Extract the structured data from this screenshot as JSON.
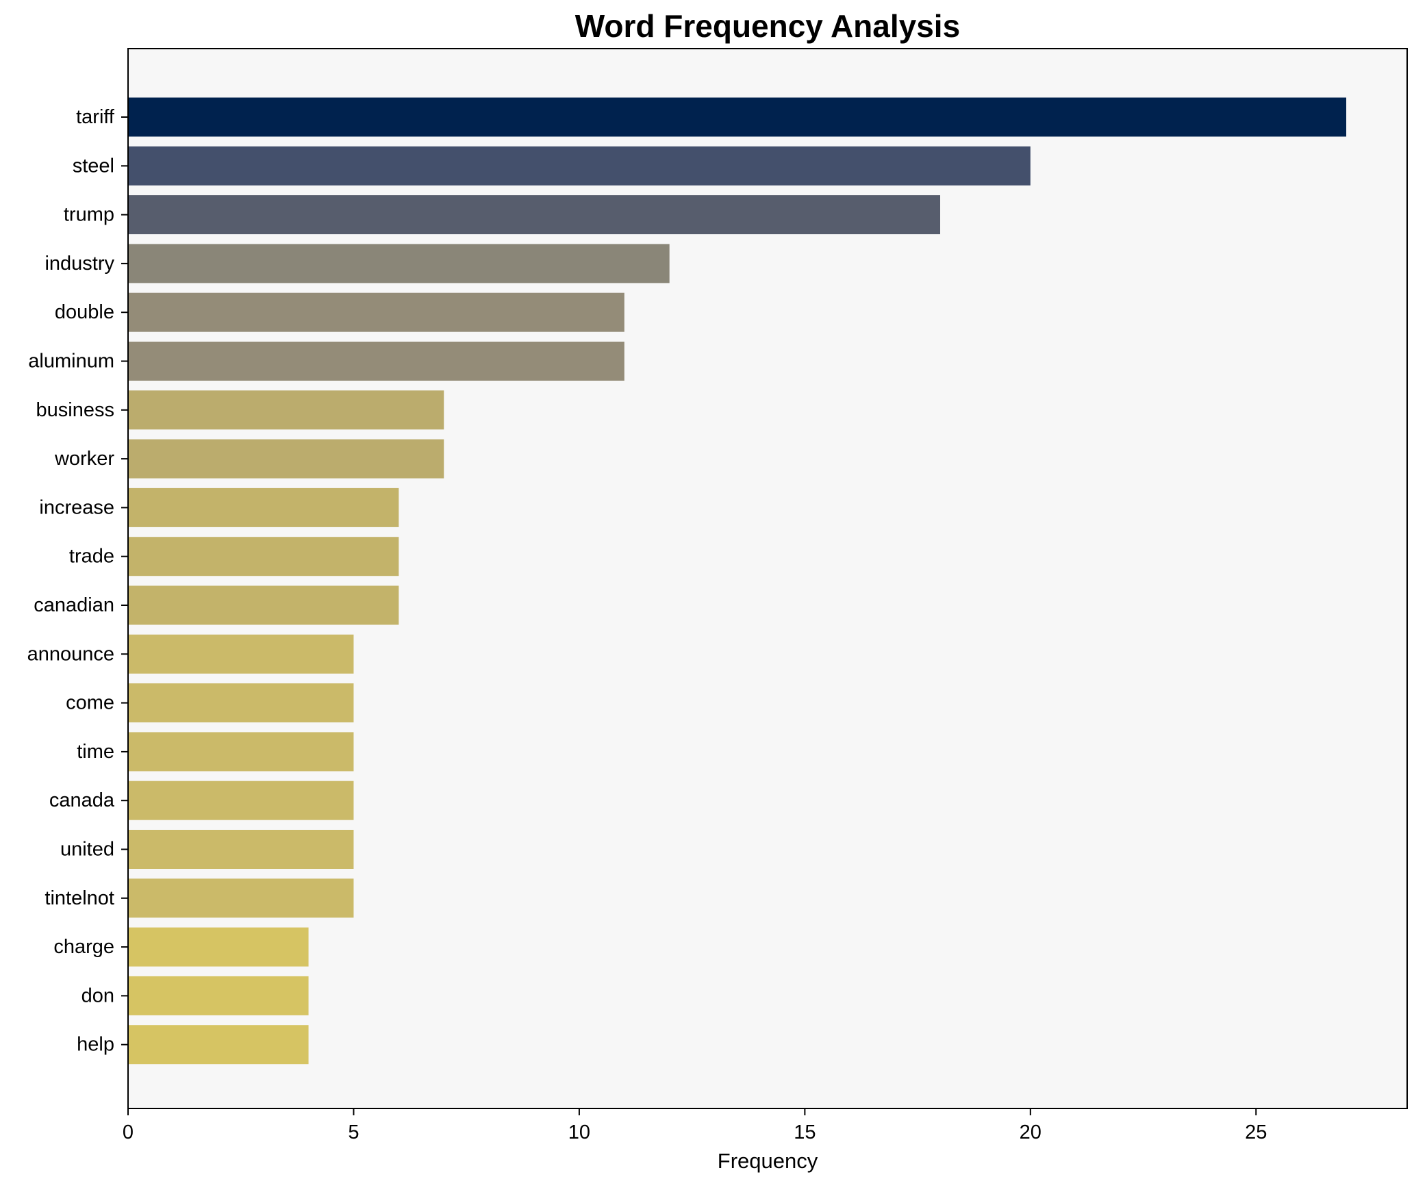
{
  "chart_data": {
    "type": "bar",
    "orientation": "horizontal",
    "title": "Word Frequency Analysis",
    "xlabel": "Frequency",
    "ylabel": "",
    "xlim": [
      0,
      28.35
    ],
    "xticks": [
      0,
      5,
      10,
      15,
      20,
      25
    ],
    "grid": false,
    "legend": "none",
    "categories": [
      "tariff",
      "steel",
      "trump",
      "industry",
      "double",
      "aluminum",
      "business",
      "worker",
      "increase",
      "trade",
      "canadian",
      "announce",
      "come",
      "time",
      "canada",
      "united",
      "tintelnot",
      "charge",
      "don",
      "help"
    ],
    "values": [
      27,
      20,
      18,
      12,
      11,
      11,
      7,
      7,
      6,
      6,
      6,
      5,
      5,
      5,
      5,
      5,
      5,
      4,
      4,
      4
    ],
    "colors": [
      "#00224e",
      "#44506c",
      "#575d6d",
      "#8a8678",
      "#948c78",
      "#948c78",
      "#bbac6d",
      "#bbac6d",
      "#c3b36a",
      "#c3b36a",
      "#c3b36a",
      "#cbba69",
      "#cbba69",
      "#cbba69",
      "#cbba69",
      "#cbba69",
      "#cbba69",
      "#d6c463",
      "#d6c463",
      "#d6c463"
    ],
    "plot_background": "#f7f7f7"
  }
}
